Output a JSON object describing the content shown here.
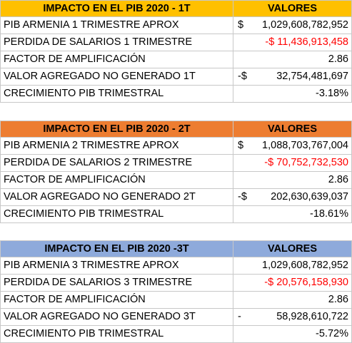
{
  "tables": [
    {
      "header": {
        "label": "IMPACTO EN EL PIB 2020 - 1T",
        "value": "VALORES"
      },
      "rows": [
        {
          "label": "PIB ARMENIA 1 TRIMESTRE APROX",
          "prefix": "$",
          "value": "1,029,608,782,952"
        },
        {
          "label": "PERDIDA DE SALARIOS 1 TRIMESTRE",
          "value": "-$ 11,436,913,458",
          "color": "#ff0000"
        },
        {
          "label": "FACTOR DE AMPLIFICACIÓN",
          "value": "2.86"
        },
        {
          "label": "VALOR AGREGADO NO GENERADO 1T",
          "prefix": "-$",
          "value": "32,754,481,697"
        },
        {
          "label": "CRECIMIENTO PIB TRIMESTRAL",
          "value": "-3.18%"
        }
      ]
    },
    {
      "header": {
        "label": "IMPACTO EN EL PIB 2020 - 2T",
        "value": "VALORES"
      },
      "rows": [
        {
          "label": "PIB ARMENIA 2 TRIMESTRE APROX",
          "prefix": "$",
          "value": "1,088,703,767,004"
        },
        {
          "label": "PERDIDA DE SALARIOS 2 TRIMESTRE",
          "value": "-$ 70,752,732,530",
          "color": "#ff0000"
        },
        {
          "label": "FACTOR DE AMPLIFICACIÓN",
          "value": "2.86"
        },
        {
          "label": "VALOR AGREGADO NO GENERADO 2T",
          "prefix": "-$",
          "value": "202,630,639,037"
        },
        {
          "label": "CRECIMIENTO PIB TRIMESTRAL",
          "value": "-18.61%"
        }
      ]
    },
    {
      "header": {
        "label": "IMPACTO EN EL PIB 2020 -3T",
        "value": "VALORES"
      },
      "rows": [
        {
          "label": "PIB ARMENIA 3 TRIMESTRE APROX",
          "value": "1,029,608,782,952"
        },
        {
          "label": "PERDIDA DE SALARIOS 3 TRIMESTRE",
          "value": "-$ 20,576,158,930",
          "color": "#ff0000"
        },
        {
          "label": "FACTOR DE AMPLIFICACIÓN",
          "value": "2.86"
        },
        {
          "label": "VALOR AGREGADO NO GENERADO 3T",
          "prefix": "-",
          "value": "58,928,610,722"
        },
        {
          "label": "CRECIMIENTO PIB TRIMESTRAL",
          "value": "-5.72%"
        }
      ]
    }
  ]
}
